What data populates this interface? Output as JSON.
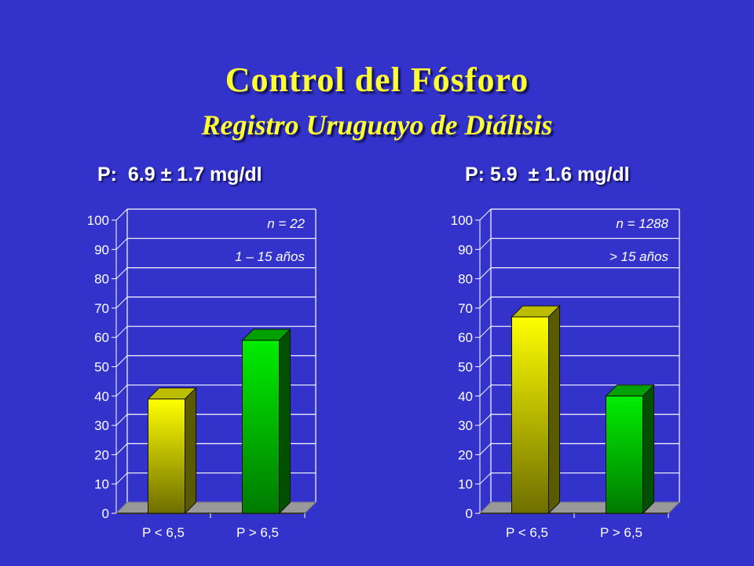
{
  "title": "Control del Fósforo",
  "subtitle": "Registro Uruguayo de Diálisis",
  "chart_data": [
    {
      "type": "bar",
      "stat_label": "P:  6.9 ± 1.7 mg/dl",
      "annotations": [
        "n = 22",
        "1 – 15 años"
      ],
      "categories": [
        "P < 6,5",
        "P > 6,5"
      ],
      "values": [
        39,
        59
      ],
      "colors": [
        "#ffff00",
        "#00dd00"
      ],
      "ylim": [
        0,
        100
      ],
      "yticks": [
        0,
        10,
        20,
        30,
        40,
        50,
        60,
        70,
        80,
        90,
        100
      ],
      "grid": true,
      "three_d": true
    },
    {
      "type": "bar",
      "stat_label": "P: 5.9  ± 1.6 mg/dl",
      "annotations": [
        "n = 1288",
        "> 15 años"
      ],
      "categories": [
        "P < 6,5",
        "P > 6,5"
      ],
      "values": [
        67,
        40
      ],
      "colors": [
        "#ffff00",
        "#00dd00"
      ],
      "ylim": [
        0,
        100
      ],
      "yticks": [
        0,
        10,
        20,
        30,
        40,
        50,
        60,
        70,
        80,
        90,
        100
      ],
      "grid": true,
      "three_d": true
    }
  ]
}
